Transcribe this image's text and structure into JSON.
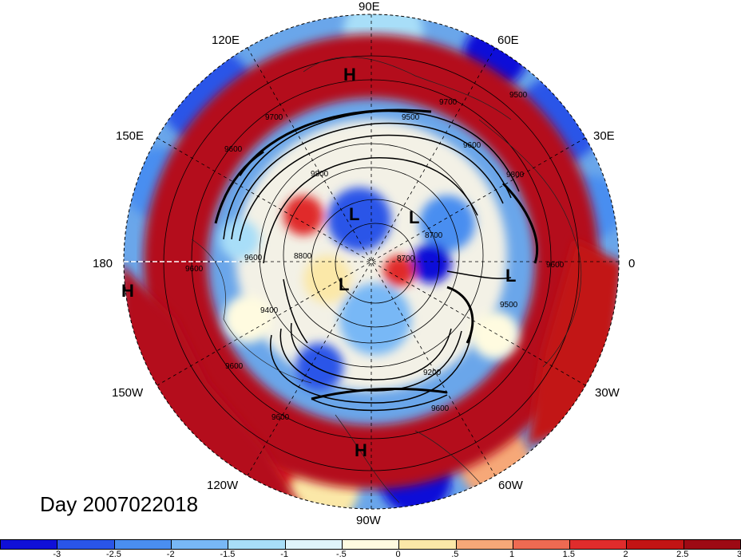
{
  "title": "Day 2007022018",
  "map": {
    "projection": "north polar stereographic",
    "lon_labels": [
      "90E",
      "120E",
      "60E",
      "150E",
      "30E",
      "180",
      "0",
      "150W",
      "30W",
      "120W",
      "60W",
      "90W"
    ],
    "pressure_centers": [
      "H",
      "L",
      "L",
      "L",
      "L",
      "H",
      "H"
    ],
    "contour_labels": [
      "9700",
      "9700",
      "9500",
      "9600",
      "9600",
      "9500",
      "9800",
      "9800",
      "8700",
      "8700",
      "8800",
      "9600",
      "9400",
      "9600",
      "9500",
      "9200",
      "9600",
      "9600",
      "9600",
      "9600"
    ]
  },
  "colorbar": {
    "colors": [
      "#1010d8",
      "#2a55e8",
      "#4a8ef0",
      "#78b8f6",
      "#a8def8",
      "#dff4fb",
      "#fffbe0",
      "#fbe8a8",
      "#f6a878",
      "#ee6a52",
      "#e02c2c",
      "#c21414",
      "#9e0a14"
    ],
    "ticks": [
      "-3",
      "-2.5",
      "-2",
      "-1.5",
      "-1",
      "-.5",
      "0",
      ".5",
      "1",
      "1.5",
      "2",
      "2.5",
      "3"
    ]
  }
}
